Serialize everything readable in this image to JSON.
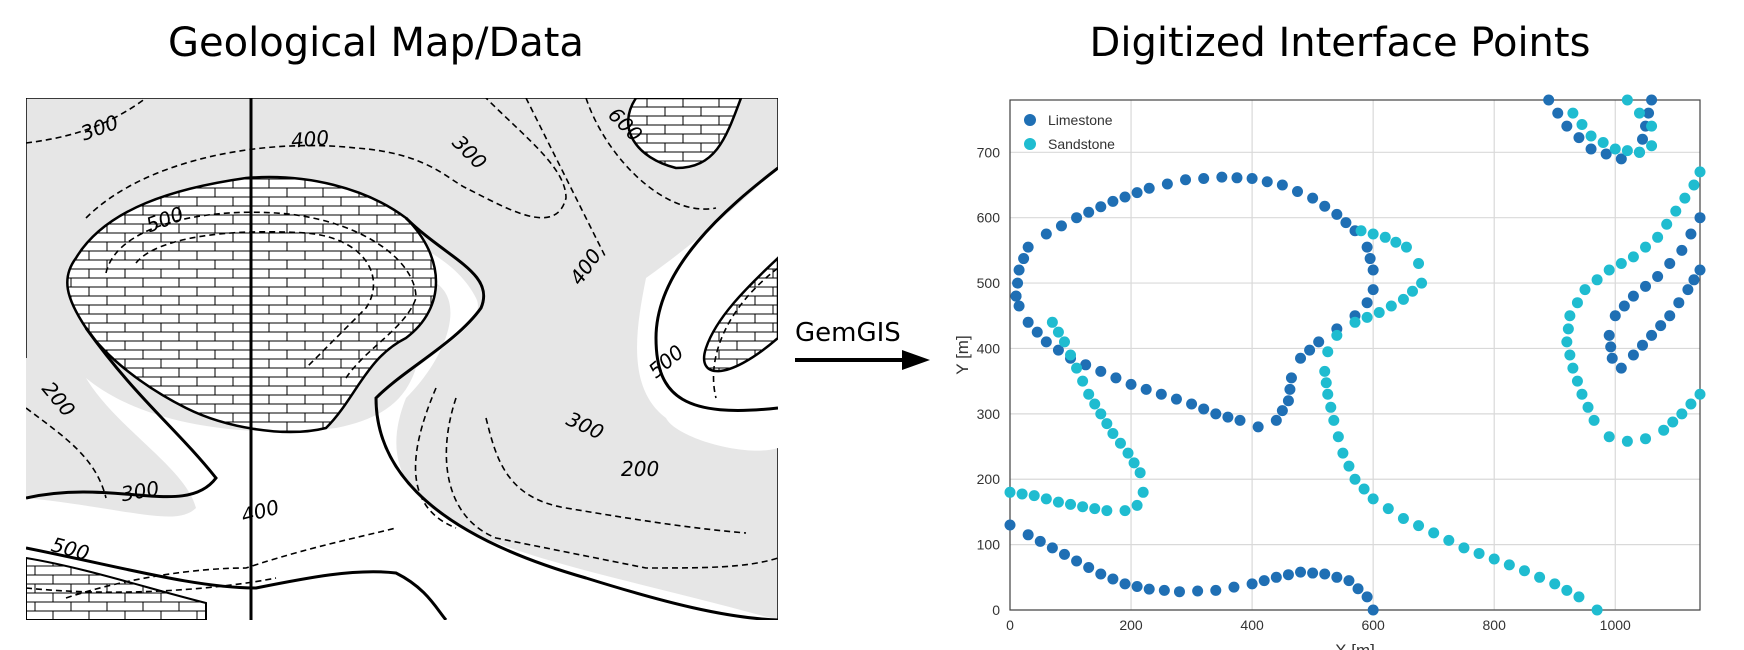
{
  "titles": {
    "left": "Geological Map/Data",
    "right": "Digitized Interface Points"
  },
  "arrow": {
    "label": "GemGIS"
  },
  "map": {
    "contour_labels": [
      "300",
      "400",
      "300",
      "600",
      "500",
      "400",
      "500",
      "200",
      "300",
      "200",
      "300",
      "400",
      "500"
    ]
  },
  "chart_data": {
    "type": "scatter",
    "title": "",
    "xlabel": "X [m]",
    "ylabel": "Y [m]",
    "xlim": [
      0,
      1140
    ],
    "ylim": [
      0,
      780
    ],
    "xticks": [
      0,
      200,
      400,
      600,
      800,
      1000
    ],
    "yticks": [
      0,
      100,
      200,
      300,
      400,
      500,
      600,
      700
    ],
    "grid": true,
    "legend": "top-left",
    "series": [
      {
        "name": "Limestone",
        "color": "#1f6fb4",
        "segments": [
          [
            [
              10,
              480
            ],
            [
              15,
              520
            ],
            [
              30,
              555
            ],
            [
              60,
              575
            ],
            [
              110,
              600
            ],
            [
              170,
              625
            ],
            [
              230,
              645
            ],
            [
              290,
              658
            ],
            [
              350,
              662
            ],
            [
              400,
              660
            ],
            [
              450,
              650
            ],
            [
              500,
              630
            ],
            [
              540,
              605
            ],
            [
              570,
              580
            ],
            [
              590,
              555
            ],
            [
              600,
              520
            ],
            [
              600,
              490
            ],
            [
              590,
              470
            ],
            [
              570,
              450
            ],
            [
              540,
              430
            ],
            [
              510,
              410
            ],
            [
              480,
              385
            ],
            [
              465,
              355
            ],
            [
              460,
              320
            ],
            [
              440,
              290
            ],
            [
              410,
              280
            ],
            [
              380,
              290
            ],
            [
              340,
              300
            ],
            [
              300,
              315
            ],
            [
              250,
              330
            ],
            [
              200,
              345
            ],
            [
              150,
              365
            ],
            [
              100,
              385
            ],
            [
              60,
              410
            ],
            [
              30,
              440
            ],
            [
              15,
              465
            ],
            [
              10,
              480
            ]
          ],
          [
            [
              0,
              130
            ],
            [
              30,
              115
            ],
            [
              70,
              95
            ],
            [
              110,
              75
            ],
            [
              150,
              55
            ],
            [
              190,
              40
            ],
            [
              230,
              32
            ],
            [
              280,
              28
            ],
            [
              340,
              30
            ],
            [
              400,
              40
            ],
            [
              440,
              50
            ],
            [
              480,
              58
            ],
            [
              520,
              55
            ],
            [
              560,
              45
            ],
            [
              590,
              20
            ],
            [
              600,
              0
            ]
          ],
          [
            [
              890,
              780
            ],
            [
              920,
              740
            ],
            [
              960,
              705
            ],
            [
              1010,
              690
            ],
            [
              1040,
              700
            ],
            [
              1050,
              740
            ],
            [
              1060,
              780
            ]
          ],
          [
            [
              1140,
              520
            ],
            [
              1120,
              490
            ],
            [
              1090,
              450
            ],
            [
              1060,
              420
            ],
            [
              1030,
              390
            ],
            [
              1010,
              370
            ],
            [
              995,
              385
            ],
            [
              990,
              420
            ],
            [
              1000,
              450
            ],
            [
              1030,
              480
            ],
            [
              1070,
              510
            ],
            [
              1110,
              550
            ],
            [
              1140,
              600
            ]
          ]
        ]
      },
      {
        "name": "Sandstone",
        "color": "#1fbcd0",
        "segments": [
          [
            [
              0,
              180
            ],
            [
              40,
              175
            ],
            [
              80,
              165
            ],
            [
              120,
              158
            ],
            [
              160,
              152
            ],
            [
              190,
              152
            ],
            [
              210,
              160
            ],
            [
              220,
              180
            ],
            [
              215,
              210
            ],
            [
              195,
              240
            ],
            [
              170,
              270
            ],
            [
              150,
              300
            ],
            [
              130,
              330
            ],
            [
              110,
              370
            ],
            [
              90,
              410
            ],
            [
              70,
              440
            ]
          ],
          [
            [
              1140,
              330
            ],
            [
              1110,
              300
            ],
            [
              1080,
              275
            ],
            [
              1050,
              262
            ],
            [
              1020,
              258
            ],
            [
              990,
              265
            ],
            [
              965,
              290
            ],
            [
              945,
              330
            ],
            [
              930,
              370
            ],
            [
              920,
              410
            ],
            [
              925,
              450
            ],
            [
              950,
              490
            ],
            [
              990,
              520
            ],
            [
              1030,
              540
            ],
            [
              1070,
              570
            ],
            [
              1100,
              610
            ],
            [
              1130,
              650
            ],
            [
              1140,
              670
            ]
          ],
          [
            [
              970,
              0
            ],
            [
              940,
              20
            ],
            [
              900,
              40
            ],
            [
              850,
              60
            ],
            [
              800,
              78
            ],
            [
              750,
              95
            ],
            [
              700,
              118
            ],
            [
              650,
              140
            ],
            [
              600,
              170
            ],
            [
              570,
              200
            ],
            [
              550,
              240
            ],
            [
              535,
              290
            ],
            [
              525,
              330
            ],
            [
              520,
              365
            ],
            [
              525,
              395
            ],
            [
              540,
              420
            ],
            [
              570,
              440
            ],
            [
              610,
              455
            ],
            [
              650,
              475
            ],
            [
              680,
              500
            ],
            [
              675,
              530
            ],
            [
              655,
              555
            ],
            [
              620,
              570
            ],
            [
              580,
              580
            ]
          ],
          [
            [
              930,
              760
            ],
            [
              960,
              725
            ],
            [
              1000,
              705
            ],
            [
              1040,
              700
            ],
            [
              1060,
              710
            ],
            [
              1060,
              740
            ],
            [
              1040,
              760
            ],
            [
              1020,
              780
            ]
          ]
        ]
      }
    ]
  }
}
